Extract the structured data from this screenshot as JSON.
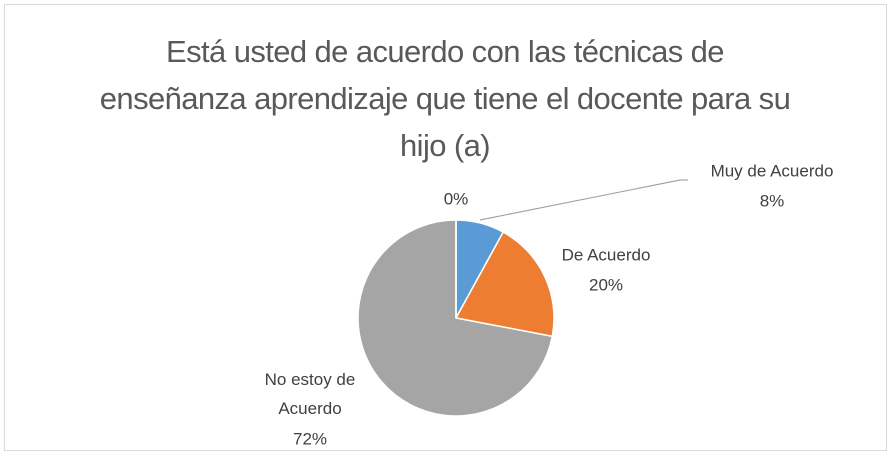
{
  "chart_data": {
    "type": "pie",
    "title": "Está usted de acuerdo con las técnicas de enseñanza aprendizaje que tiene el docente para su hijo (a)",
    "categories": [
      "Muy de Acuerdo",
      "De Acuerdo",
      "No estoy de Acuerdo",
      null
    ],
    "values": [
      8,
      20,
      72,
      0
    ],
    "value_labels": [
      "8%",
      "20%",
      "72%",
      "0%"
    ],
    "colors": [
      "#5b9bd5",
      "#ed7d31",
      "#a5a5a5",
      "#ffc000"
    ]
  }
}
